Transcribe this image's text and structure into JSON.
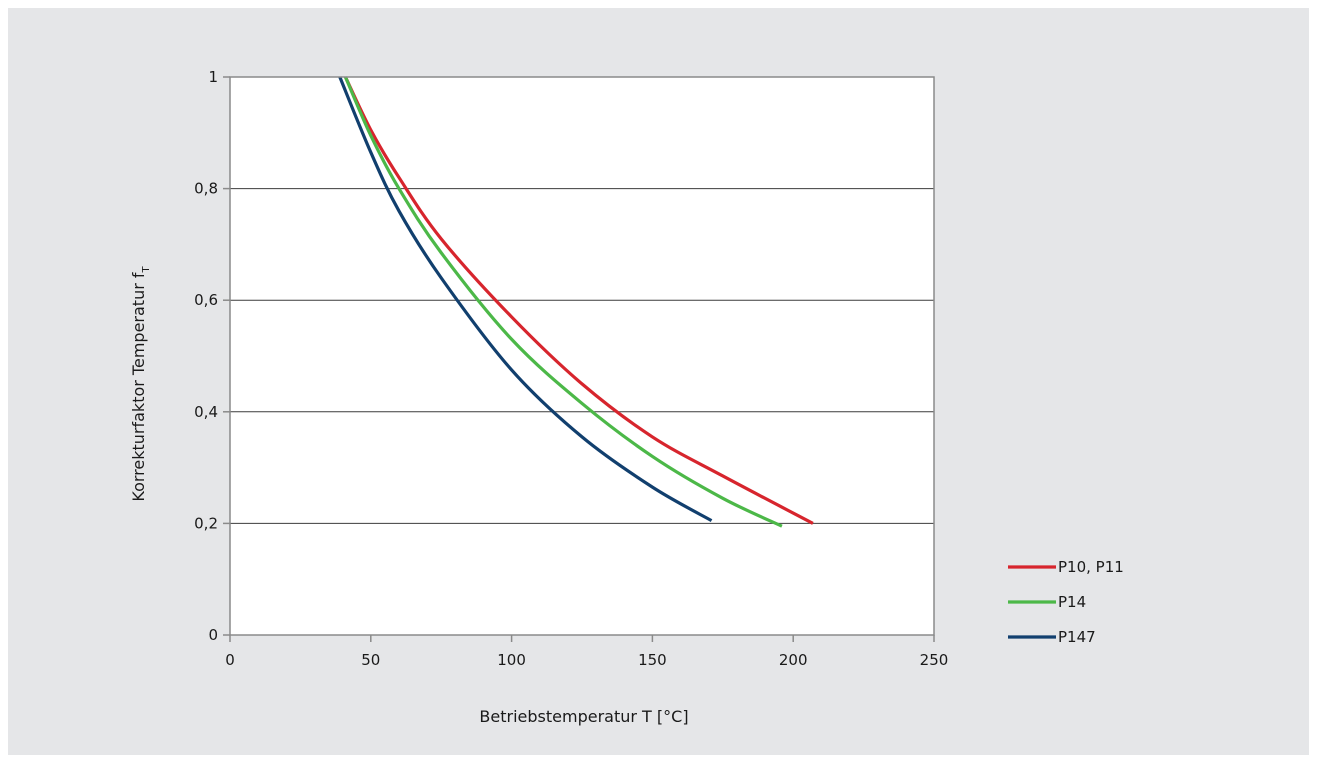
{
  "chart_data": {
    "type": "line",
    "title": "",
    "xlabel": "Betriebstemperatur T [°C]",
    "ylabel_main": "Korrekturfaktor Temperatur f",
    "ylabel_sub": "T",
    "xlim": [
      0,
      250
    ],
    "ylim": [
      0,
      1
    ],
    "x_ticks": [
      0,
      50,
      100,
      150,
      200,
      250
    ],
    "x_tick_labels": [
      "0",
      "50",
      "100",
      "150",
      "200",
      "250"
    ],
    "y_ticks": [
      0,
      0.2,
      0.4,
      0.6,
      0.8,
      1
    ],
    "y_tick_labels": [
      "0",
      "0,2",
      "0,4",
      "0,6",
      "0,8",
      "1"
    ],
    "grid": "horizontal",
    "legend_position": "right-bottom",
    "series": [
      {
        "name": "P10, P11",
        "color": "#d7252d",
        "x": [
          41,
          50,
          60,
          75,
          100,
          125,
          150,
          175,
          207
        ],
        "y": [
          1.0,
          0.905,
          0.82,
          0.71,
          0.57,
          0.45,
          0.355,
          0.285,
          0.2
        ]
      },
      {
        "name": "P14",
        "color": "#4cb848",
        "x": [
          41,
          50,
          60,
          75,
          100,
          125,
          150,
          175,
          196
        ],
        "y": [
          1.0,
          0.895,
          0.8,
          0.685,
          0.53,
          0.415,
          0.32,
          0.245,
          0.195
        ]
      },
      {
        "name": "P147",
        "color": "#113f6e",
        "x": [
          39,
          50,
          60,
          75,
          100,
          125,
          150,
          171
        ],
        "y": [
          1.0,
          0.865,
          0.76,
          0.64,
          0.475,
          0.355,
          0.265,
          0.205
        ]
      }
    ]
  }
}
